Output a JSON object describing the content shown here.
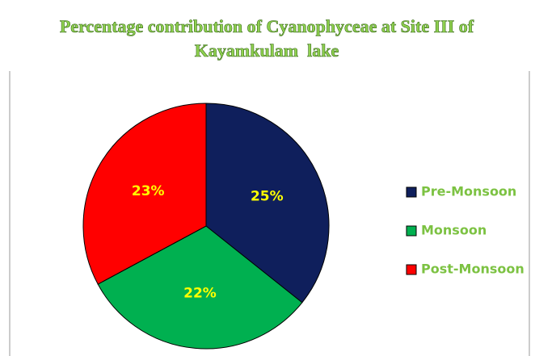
{
  "chart_data": {
    "type": "pie",
    "title": "Percentage contribution of Cyanophyceae at Site III of Kayamkulam  lake",
    "categories": [
      "Pre-Monsoon",
      "Monsoon",
      "Post-Monsoon"
    ],
    "values": [
      25,
      22,
      23
    ],
    "value_labels": [
      "25%",
      "22%",
      "23%"
    ],
    "colors": [
      "#0f1f5c",
      "#00b050",
      "#ff0000"
    ],
    "legend": "right"
  }
}
